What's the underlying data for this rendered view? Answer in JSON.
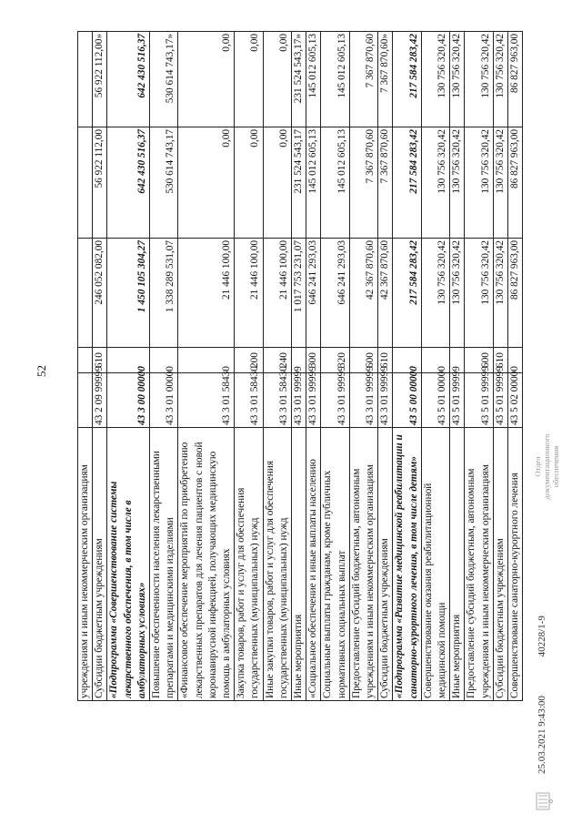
{
  "page_number": "52",
  "footer": {
    "timestamp": "25.03.2021 9:43:00",
    "doc_number": "40228/1-9"
  },
  "stamp": {
    "text": "Отдел документационного обеспечения"
  },
  "table": {
    "rows": [
      {
        "desc": "учреждениям и иным некоммерческим организациям",
        "code": "",
        "vr": "",
        "a1": "",
        "a2": "",
        "a3": "",
        "bold": false
      },
      {
        "desc": "Субсидии бюджетным учреждениям",
        "code": "43 2 09 99999",
        "vr": "610",
        "a1": "246 052 082,00",
        "a2": "56 922 112,00",
        "a3": "56 922 112,00»",
        "bold": false
      },
      {
        "desc": "«Подпрограмма «Совершенствование системы лекарственного обеспечения, в том числе в амбулаторных условиях»",
        "code": "43 3 00 00000",
        "vr": "",
        "a1": "1 450 105 304,27",
        "a2": "642 430 516,37",
        "a3": "642 430 516,37",
        "bold": true
      },
      {
        "desc": "Повышение обеспеченности населения лекарственными препаратами и медицинскими изделиями",
        "code": "43 3 01 00000",
        "vr": "",
        "a1": "1 338 289 531,07",
        "a2": "530 614 743,17",
        "a3": "530 614 743,17»",
        "bold": false
      },
      {
        "desc": "«Финансовое обеспечение мероприятий по приобретению лекарственных препаратов для лечения пациентов с новой коронавирусной инфекцией, получающих медицинскую помощь в амбулаторных условиях",
        "code": "43 3 01 58430",
        "vr": "",
        "a1": "21 446 100,00",
        "a2": "0,00",
        "a3": "0,00",
        "bold": false
      },
      {
        "desc": "Закупка товаров, работ и услуг для обеспечения государственных (муниципальных) нужд",
        "code": "43 3 01 58430",
        "vr": "200",
        "a1": "21 446 100,00",
        "a2": "0,00",
        "a3": "0,00",
        "bold": false
      },
      {
        "desc": "Иные закупки товаров, работ и услуг для обеспечения государственных (муниципальных) нужд",
        "code": "43 3 01 58430",
        "vr": "240",
        "a1": "21 446 100,00",
        "a2": "0,00",
        "a3": "0,00",
        "bold": false
      },
      {
        "desc": "Иные мероприятия",
        "code": "43 3 01 99999",
        "vr": "",
        "a1": "1 017 753 231,07",
        "a2": "231 524 543,17",
        "a3": "231 524 543,17»",
        "bold": false
      },
      {
        "desc": "«Социальное обеспечение и иные выплаты населению",
        "code": "43 3 01 99999",
        "vr": "300",
        "a1": "646 241 293,03",
        "a2": "145 012 605,13",
        "a3": "145 012 605,13",
        "bold": false
      },
      {
        "desc": "Социальные выплаты гражданам, кроме публичных нормативных социальных выплат",
        "code": "43 3 01 99999",
        "vr": "320",
        "a1": "646 241 293,03",
        "a2": "145 012 605,13",
        "a3": "145 012 605,13",
        "bold": false
      },
      {
        "desc": "Предоставление субсидий бюджетным, автономным учреждениям и иным некоммерческим организациям",
        "code": "43 3 01 99999",
        "vr": "600",
        "a1": "42 367 870,60",
        "a2": "7 367 870,60",
        "a3": "7 367 870,60",
        "bold": false
      },
      {
        "desc": "Субсидии бюджетным учреждениям",
        "code": "43 3 01 99999",
        "vr": "610",
        "a1": "42 367 870,60",
        "a2": "7 367 870,60",
        "a3": "7 367 870,60»",
        "bold": false
      },
      {
        "desc": "«Подпрограмма «Развитие медицинской реабилитации и санаторно-курортного лечения, в том числе детям»",
        "code": "43 5 00 00000",
        "vr": "",
        "a1": "217 584 283,42",
        "a2": "217 584 283,42",
        "a3": "217 584 283,42",
        "bold": true
      },
      {
        "desc": "Совершенствование оказания реабилитационной медицинской помощи",
        "code": "43 5 01 00000",
        "vr": "",
        "a1": "130 756 320,42",
        "a2": "130 756 320,42",
        "a3": "130 756 320,42",
        "bold": false
      },
      {
        "desc": "Иные мероприятия",
        "code": "43 5 01 99999",
        "vr": "",
        "a1": "130 756 320,42",
        "a2": "130 756 320,42",
        "a3": "130 756 320,42",
        "bold": false
      },
      {
        "desc": "Предоставление субсидий бюджетным, автономным учреждениям и иным некоммерческим организациям",
        "code": "43 5 01 99999",
        "vr": "600",
        "a1": "130 756 320,42",
        "a2": "130 756 320,42",
        "a3": "130 756 320,42",
        "bold": false
      },
      {
        "desc": "Субсидии бюджетным учреждениям",
        "code": "43 5 01 99999",
        "vr": "610",
        "a1": "130 756 320,42",
        "a2": "130 756 320,42",
        "a3": "130 756 320,42",
        "bold": false
      },
      {
        "desc": "Совершенствование санаторно-курортного лечения",
        "code": "43 5 02 00000",
        "vr": "",
        "a1": "86 827 963,00",
        "a2": "86 827 963,00",
        "a3": "86 827 963,00",
        "bold": false
      }
    ]
  }
}
